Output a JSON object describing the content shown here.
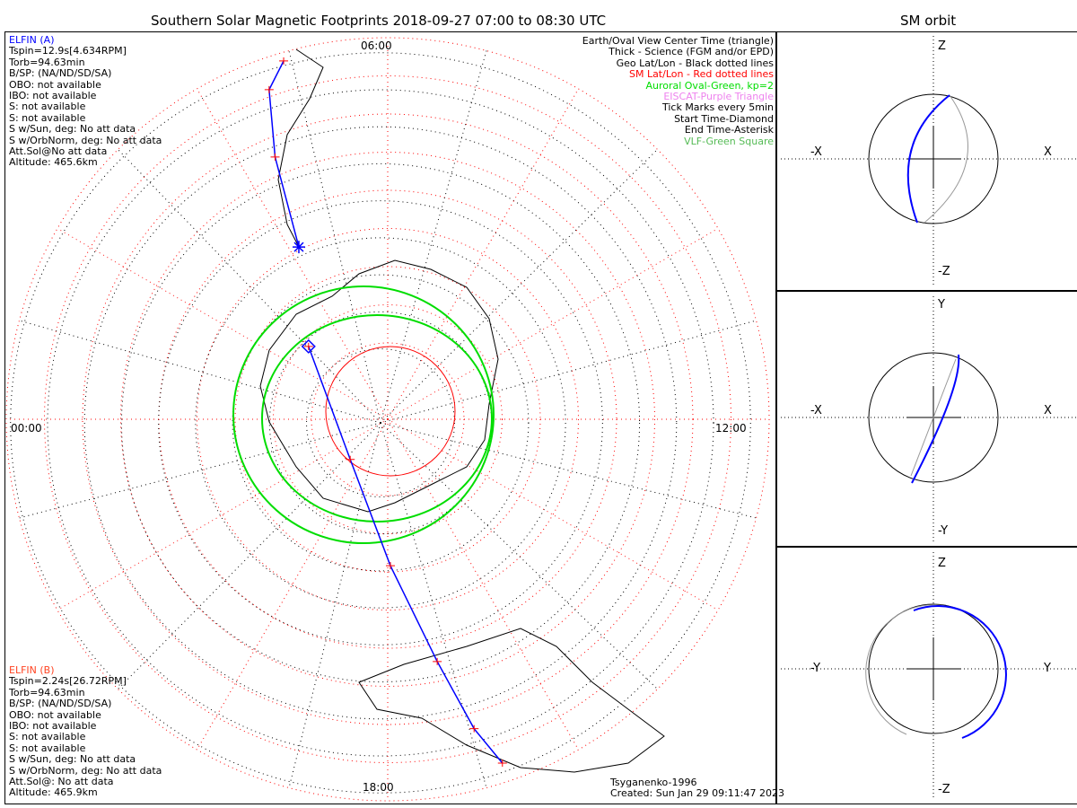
{
  "header": {
    "title": "Southern Solar Magnetic Footprints 2018-09-27 07:00 to 08:30 UTC",
    "orbit_title": "SM orbit"
  },
  "elfin_a": {
    "name": "ELFIN (A)",
    "lines": [
      "Tspin=12.9s[4.634RPM]",
      "Torb=94.63min",
      "B/SP: (NA/ND/SD/SA)",
      "OBO: not available",
      "IBO: not available",
      "S: not available",
      "S: not available",
      "S w/Sun, deg: No att data",
      "S w/OrbNorm, deg: No att data",
      "Att.Sol@No att data",
      "Altitude: 465.6km"
    ]
  },
  "elfin_b": {
    "name": "ELFIN (B)",
    "lines": [
      "Tspin=2.24s[26.72RPM]",
      "Torb=94.63min",
      "B/SP: (NA/ND/SD/SA)",
      "OBO: not available",
      "IBO: not available",
      "S: not available",
      "S: not available",
      "S w/Sun, deg: No att data",
      "S w/OrbNorm, deg: No att data",
      "Att.Sol@: No att data",
      "Altitude: 465.9km"
    ]
  },
  "legend": [
    {
      "text": "Earth/Oval View Center Time (triangle)",
      "color": "#000000"
    },
    {
      "text": "Thick - Science (FGM and/or EPD)",
      "color": "#000000"
    },
    {
      "text": "Geo Lat/Lon - Black dotted lines",
      "color": "#000000"
    },
    {
      "text": "SM Lat/Lon - Red dotted lines",
      "color": "#ff0000"
    },
    {
      "text": "Auroral Oval-Green, kp=2",
      "color": "#00dd00"
    },
    {
      "text": "EISCAT-Purple Triangle",
      "color": "#ee82ee"
    },
    {
      "text": "Tick Marks every 5min",
      "color": "#000000"
    },
    {
      "text": "Start Time-Diamond",
      "color": "#000000"
    },
    {
      "text": "End Time-Asterisk",
      "color": "#000000"
    },
    {
      "text": "VLF-Green Square",
      "color": "#55bb55"
    }
  ],
  "footer": {
    "model": "Tsyganenko-1996",
    "created": "Created: Sun Jan 29 09:11:47 2023"
  },
  "chart_data": {
    "type": "scatter",
    "title": "Southern Solar Magnetic Footprints 2018-09-27 07:00 to 08:30 UTC",
    "projection": "polar (MLT, magnetic colatitude deg)",
    "mlt_labels": {
      "top": "06:00",
      "left": "00:00",
      "right": "12:00",
      "bottom": "18:00"
    },
    "colat_max": 50,
    "ring_step_deg": 10,
    "track_segments": [
      [
        [
          4.92,
          48.9
        ],
        [
          4.68,
          45.9
        ],
        [
          4.45,
          37.4
        ],
        [
          4.18,
          25.4
        ]
      ],
      [
        [
          2.84,
          14.1
        ],
        [
          20.87,
          7.2
        ],
        [
          17.93,
          19.2
        ],
        [
          17.23,
          32.4
        ],
        [
          16.96,
          42.1
        ],
        [
          16.77,
          47.5
        ]
      ]
    ],
    "track_color": "#0000ff",
    "orbit_panels": [
      {
        "up": "Z",
        "down": "-Z",
        "left": "-X",
        "right": "X"
      },
      {
        "up": "Y",
        "down": "-Y",
        "left": "-X",
        "right": "X"
      },
      {
        "up": "Z",
        "down": "-Z",
        "left": "-Y",
        "right": "Y"
      }
    ]
  }
}
